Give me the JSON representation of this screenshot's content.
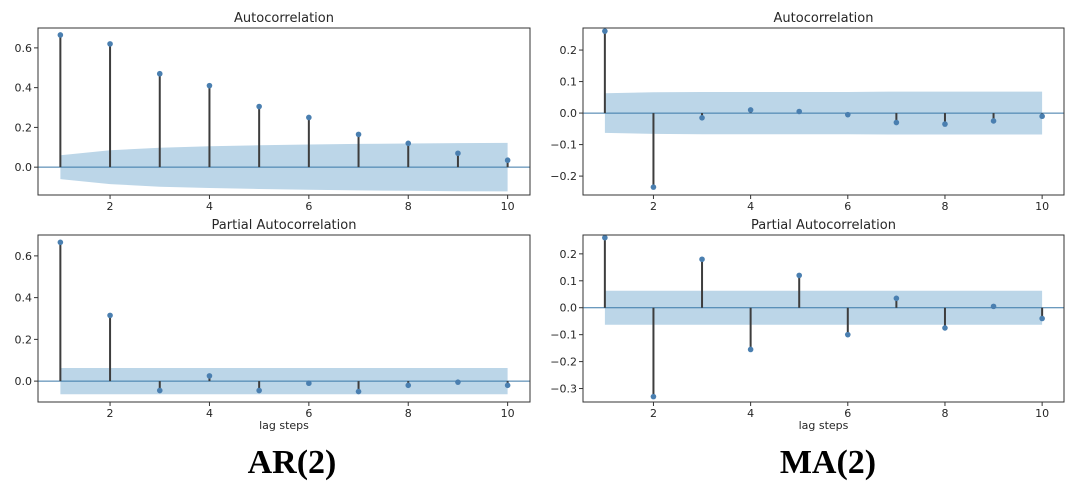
{
  "labels": {
    "left": "AR(2)",
    "right": "MA(2)"
  },
  "colors": {
    "band": "#bcd6e8",
    "stem": "#3d3d3d",
    "marker": "#4a7fb0",
    "zero": "#3a78a8",
    "frame": "#333333"
  },
  "chart_data": [
    {
      "id": "ar-acf",
      "type": "stem",
      "title": "Autocorrelation",
      "xlabel": "",
      "x": [
        1,
        2,
        3,
        4,
        5,
        6,
        7,
        8,
        9,
        10
      ],
      "y": [
        0.665,
        0.62,
        0.47,
        0.41,
        0.305,
        0.25,
        0.165,
        0.12,
        0.07,
        0.035
      ],
      "band_upper": [
        0.06,
        0.085,
        0.098,
        0.105,
        0.11,
        0.114,
        0.117,
        0.119,
        0.121,
        0.122
      ],
      "xlim": [
        0.55,
        10.45
      ],
      "ylim": [
        -0.14,
        0.7
      ],
      "xticks": [
        2,
        4,
        6,
        8,
        10
      ],
      "yticks": [
        0.0,
        0.2,
        0.4,
        0.6
      ],
      "ytick_labels": [
        "0.0",
        "0.2",
        "0.4",
        "0.6"
      ]
    },
    {
      "id": "ma-acf",
      "type": "stem",
      "title": "Autocorrelation",
      "xlabel": "",
      "x": [
        1,
        2,
        3,
        4,
        5,
        6,
        7,
        8,
        9,
        10
      ],
      "y": [
        0.26,
        -0.235,
        -0.015,
        0.01,
        0.005,
        -0.005,
        -0.03,
        -0.035,
        -0.025,
        -0.01
      ],
      "band_upper": [
        0.063,
        0.066,
        0.067,
        0.067,
        0.067,
        0.067,
        0.068,
        0.068,
        0.068,
        0.068
      ],
      "xlim": [
        0.55,
        10.45
      ],
      "ylim": [
        -0.26,
        0.27
      ],
      "xticks": [
        2,
        4,
        6,
        8,
        10
      ],
      "yticks": [
        0.2,
        0.1,
        0.0,
        -0.1,
        -0.2
      ],
      "ytick_labels": [
        "0.2",
        "0.1",
        "0.0",
        "−0.1",
        "−0.2"
      ]
    },
    {
      "id": "ar-pacf",
      "type": "stem",
      "title": "Partial Autocorrelation",
      "xlabel": "lag steps",
      "x": [
        1,
        2,
        3,
        4,
        5,
        6,
        7,
        8,
        9,
        10
      ],
      "y": [
        0.665,
        0.315,
        -0.045,
        0.025,
        -0.045,
        -0.01,
        -0.05,
        -0.02,
        -0.005,
        -0.02
      ],
      "band_upper": [
        0.063,
        0.063,
        0.063,
        0.063,
        0.063,
        0.063,
        0.063,
        0.063,
        0.063,
        0.063
      ],
      "xlim": [
        0.55,
        10.45
      ],
      "ylim": [
        -0.1,
        0.7
      ],
      "xticks": [
        2,
        4,
        6,
        8,
        10
      ],
      "yticks": [
        0.0,
        0.2,
        0.4,
        0.6
      ],
      "ytick_labels": [
        "0.0",
        "0.2",
        "0.4",
        "0.6"
      ]
    },
    {
      "id": "ma-pacf",
      "type": "stem",
      "title": "Partial Autocorrelation",
      "xlabel": "lag steps",
      "x": [
        1,
        2,
        3,
        4,
        5,
        6,
        7,
        8,
        9,
        10
      ],
      "y": [
        0.26,
        -0.33,
        0.18,
        -0.155,
        0.12,
        -0.1,
        0.035,
        -0.075,
        0.005,
        -0.04
      ],
      "band_upper": [
        0.063,
        0.063,
        0.063,
        0.063,
        0.063,
        0.063,
        0.063,
        0.063,
        0.063,
        0.063
      ],
      "xlim": [
        0.55,
        10.45
      ],
      "ylim": [
        -0.35,
        0.27
      ],
      "xticks": [
        2,
        4,
        6,
        8,
        10
      ],
      "yticks": [
        0.2,
        0.1,
        0.0,
        -0.1,
        -0.2,
        -0.3
      ],
      "ytick_labels": [
        "0.2",
        "0.1",
        "0.0",
        "−0.1",
        "−0.2",
        "−0.3"
      ]
    }
  ]
}
